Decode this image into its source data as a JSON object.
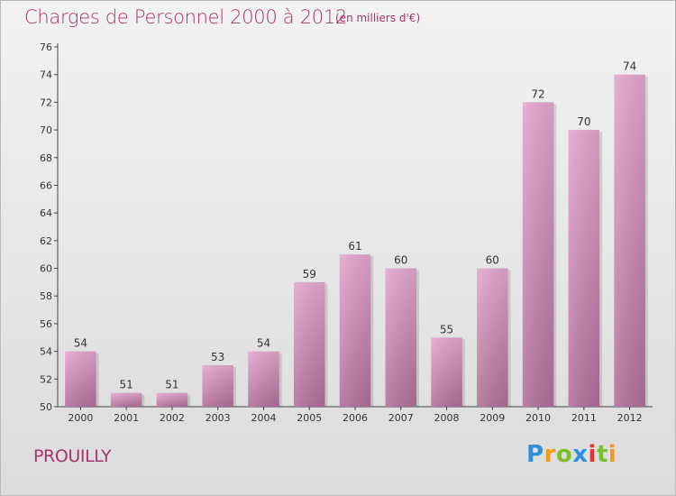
{
  "header": {
    "title": "Charges de Personnel 2000 à 2012",
    "subtitle": "(en milliers d'€)"
  },
  "footer": {
    "commune": "PROUILLY",
    "logo_text": "Proxiti",
    "logo_letters": [
      {
        "ch": "P",
        "color": "#2f8fd8"
      },
      {
        "ch": "r",
        "color": "#f39a1c"
      },
      {
        "ch": "o",
        "color": "#7cbf2a"
      },
      {
        "ch": "x",
        "color": "#2f8fd8"
      },
      {
        "ch": "i",
        "color": "#e8342f"
      },
      {
        "ch": "t",
        "color": "#7cbf2a"
      },
      {
        "ch": "i",
        "color": "#f39a1c"
      }
    ]
  },
  "chart_data": {
    "type": "bar",
    "title": "Charges de Personnel 2000 à 2012",
    "subtitle": "(en milliers d'€)",
    "xlabel": "",
    "ylabel": "",
    "categories": [
      "2000",
      "2001",
      "2002",
      "2003",
      "2004",
      "2005",
      "2006",
      "2007",
      "2008",
      "2009",
      "2010",
      "2011",
      "2012"
    ],
    "values": [
      54,
      51,
      51,
      53,
      54,
      59,
      61,
      60,
      55,
      60,
      72,
      70,
      74
    ],
    "ylim": [
      50,
      76
    ],
    "yticks": [
      50,
      52,
      54,
      56,
      58,
      60,
      62,
      64,
      66,
      68,
      70,
      72,
      74,
      76
    ],
    "grid": false,
    "bar_color": "#d989b8"
  }
}
